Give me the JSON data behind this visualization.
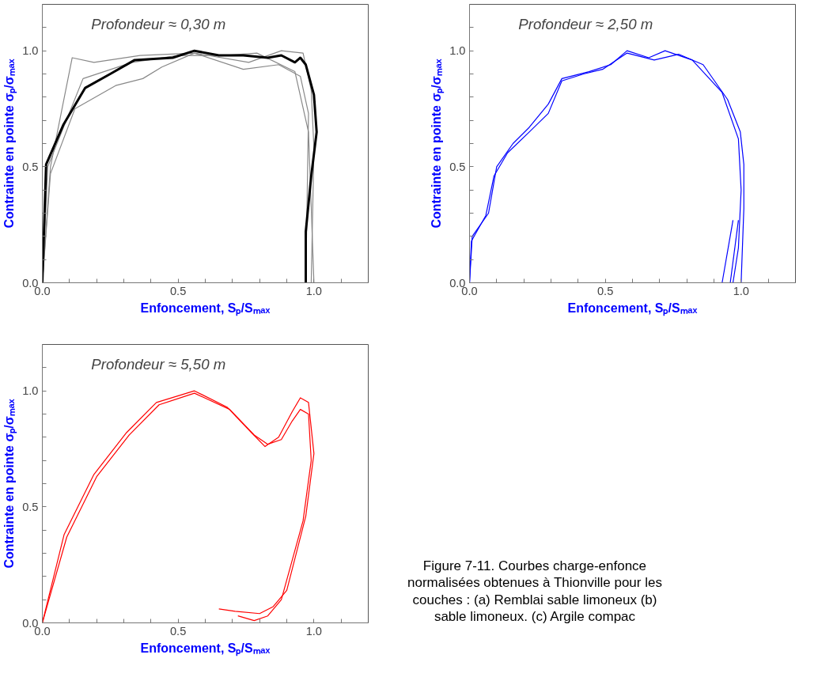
{
  "chart_data": [
    {
      "type": "line",
      "title": "Profondeur ≈ 0,30 m",
      "xlabel": "Enfoncement, Sₚ/Sₘₐₓ",
      "ylabel": "Contrainte en pointe σₚ/σₘₐₓ",
      "xlim": [
        0,
        1.2
      ],
      "ylim": [
        0,
        1.2
      ],
      "xticks": [
        {
          "value": 0,
          "label": "0.0"
        },
        {
          "value": 0.1,
          "label": null
        },
        {
          "value": 0.2,
          "label": null
        },
        {
          "value": 0.3,
          "label": null
        },
        {
          "value": 0.4,
          "label": null
        },
        {
          "value": 0.5,
          "label": "0.5"
        },
        {
          "value": 0.6,
          "label": null
        },
        {
          "value": 0.7,
          "label": null
        },
        {
          "value": 0.8,
          "label": null
        },
        {
          "value": 0.9,
          "label": null
        },
        {
          "value": 1.0,
          "label": "1.0"
        },
        {
          "value": 1.1,
          "label": null
        }
      ],
      "yticks": [
        {
          "value": 0,
          "label": "0.0"
        },
        {
          "value": 0.1,
          "label": null
        },
        {
          "value": 0.2,
          "label": null
        },
        {
          "value": 0.3,
          "label": null
        },
        {
          "value": 0.4,
          "label": null
        },
        {
          "value": 0.5,
          "label": "0.5"
        },
        {
          "value": 0.6,
          "label": null
        },
        {
          "value": 0.7,
          "label": null
        },
        {
          "value": 0.8,
          "label": null
        },
        {
          "value": 0.9,
          "label": null
        },
        {
          "value": 1.0,
          "label": "1.0"
        },
        {
          "value": 1.1,
          "label": null
        }
      ],
      "grid": false,
      "series": [
        {
          "color": "#888888",
          "x": [
            0,
            0.03,
            0.11,
            0.19,
            0.36,
            0.56,
            0.76,
            0.88,
            0.96,
            0.99,
            1.0,
            0.99
          ],
          "values": [
            0,
            0.5,
            0.97,
            0.95,
            0.98,
            0.99,
            0.95,
            1.0,
            0.99,
            0.83,
            0.58,
            0
          ]
        },
        {
          "color": "#888888",
          "x": [
            0,
            0.03,
            0.12,
            0.27,
            0.37,
            0.44,
            0.56,
            0.74,
            0.87,
            0.95,
            0.98,
            0.97
          ],
          "values": [
            0,
            0.47,
            0.75,
            0.85,
            0.88,
            0.93,
            0.99,
            0.92,
            0.94,
            0.89,
            0.73,
            0
          ]
        },
        {
          "color": "#888888",
          "x": [
            0,
            0.02,
            0.15,
            0.33,
            0.5,
            0.67,
            0.79,
            0.93,
            0.98,
            1.0
          ],
          "values": [
            0,
            0.5,
            0.88,
            0.95,
            0.98,
            0.98,
            0.99,
            0.91,
            0.65,
            0
          ]
        },
        {
          "color": "#000000",
          "x": [
            0,
            0.014,
            0.077,
            0.158,
            0.25,
            0.34,
            0.48,
            0.56,
            0.65,
            0.74,
            0.83,
            0.88,
            0.93,
            0.95,
            0.97,
            1.0,
            1.01,
            0.99,
            0.97,
            0.97
          ],
          "values": [
            0,
            0.51,
            0.68,
            0.84,
            0.9,
            0.96,
            0.97,
            1.0,
            0.98,
            0.98,
            0.97,
            0.98,
            0.95,
            0.97,
            0.94,
            0.81,
            0.65,
            0.46,
            0.22,
            0
          ]
        }
      ]
    },
    {
      "type": "line",
      "title": "Profondeur ≈ 2,50 m",
      "xlabel": "Enfoncement, Sₚ/Sₘₐₓ",
      "ylabel": "Contrainte en pointe σₚ/σₘₐₓ",
      "xlim": [
        0,
        1.2
      ],
      "ylim": [
        0,
        1.2
      ],
      "xticks": [
        {
          "value": 0,
          "label": "0.0"
        },
        {
          "value": 0.1,
          "label": null
        },
        {
          "value": 0.2,
          "label": null
        },
        {
          "value": 0.3,
          "label": null
        },
        {
          "value": 0.4,
          "label": null
        },
        {
          "value": 0.5,
          "label": "0.5"
        },
        {
          "value": 0.6,
          "label": null
        },
        {
          "value": 0.7,
          "label": null
        },
        {
          "value": 0.8,
          "label": null
        },
        {
          "value": 0.9,
          "label": null
        },
        {
          "value": 1.0,
          "label": "1.0"
        },
        {
          "value": 1.1,
          "label": null
        }
      ],
      "yticks": [
        {
          "value": 0,
          "label": "0.0"
        },
        {
          "value": 0.1,
          "label": null
        },
        {
          "value": 0.2,
          "label": null
        },
        {
          "value": 0.3,
          "label": null
        },
        {
          "value": 0.4,
          "label": null
        },
        {
          "value": 0.5,
          "label": "0.5"
        },
        {
          "value": 0.6,
          "label": null
        },
        {
          "value": 0.7,
          "label": null
        },
        {
          "value": 0.8,
          "label": null
        },
        {
          "value": 0.9,
          "label": null
        },
        {
          "value": 1.0,
          "label": "1.0"
        },
        {
          "value": 1.1,
          "label": null
        }
      ],
      "grid": false,
      "series": [
        {
          "color": "#0000ff",
          "x": [
            0,
            0.007,
            0.06,
            0.09,
            0.14,
            0.22,
            0.29,
            0.34,
            0.42,
            0.49,
            0.58,
            0.68,
            0.77,
            0.86,
            0.95,
            0.997,
            1.01,
            1.01,
            1.0
          ],
          "values": [
            0,
            0.18,
            0.29,
            0.46,
            0.56,
            0.65,
            0.73,
            0.87,
            0.9,
            0.92,
            0.99,
            0.96,
            0.985,
            0.94,
            0.79,
            0.65,
            0.51,
            0.32,
            0
          ]
        },
        {
          "color": "#0000ff",
          "x": [
            0,
            0.01,
            0.07,
            0.1,
            0.16,
            0.22,
            0.29,
            0.34,
            0.44,
            0.52,
            0.58,
            0.66,
            0.72,
            0.82,
            0.93,
            0.99,
            1.0,
            0.99,
            0.97
          ],
          "values": [
            0,
            0.2,
            0.3,
            0.5,
            0.6,
            0.67,
            0.77,
            0.88,
            0.91,
            0.94,
            1.0,
            0.97,
            1.0,
            0.96,
            0.82,
            0.62,
            0.4,
            0.15,
            0
          ]
        },
        {
          "color": "#0000ff",
          "x": [
            0.96,
            0.99
          ],
          "values": [
            0,
            0.27
          ]
        },
        {
          "color": "#0000ff",
          "x": [
            0.93,
            0.97
          ],
          "values": [
            0,
            0.27
          ]
        }
      ]
    },
    {
      "type": "line",
      "title": "Profondeur ≈ 5,50 m",
      "xlabel": "Enfoncement, Sₚ/Sₘₐₓ",
      "ylabel": "Contrainte en pointe σₚ/σₘₐₓ",
      "xlim": [
        0,
        1.2
      ],
      "ylim": [
        0,
        1.2
      ],
      "xticks": [
        {
          "value": 0,
          "label": "0.0"
        },
        {
          "value": 0.1,
          "label": null
        },
        {
          "value": 0.2,
          "label": null
        },
        {
          "value": 0.3,
          "label": null
        },
        {
          "value": 0.4,
          "label": null
        },
        {
          "value": 0.5,
          "label": "0.5"
        },
        {
          "value": 0.6,
          "label": null
        },
        {
          "value": 0.7,
          "label": null
        },
        {
          "value": 0.8,
          "label": null
        },
        {
          "value": 0.9,
          "label": null
        },
        {
          "value": 1.0,
          "label": "1.0"
        },
        {
          "value": 1.1,
          "label": null
        }
      ],
      "yticks": [
        {
          "value": 0,
          "label": "0.0"
        },
        {
          "value": 0.1,
          "label": null
        },
        {
          "value": 0.2,
          "label": null
        },
        {
          "value": 0.3,
          "label": null
        },
        {
          "value": 0.4,
          "label": null
        },
        {
          "value": 0.5,
          "label": "0.5"
        },
        {
          "value": 0.6,
          "label": null
        },
        {
          "value": 0.7,
          "label": null
        },
        {
          "value": 0.8,
          "label": null
        },
        {
          "value": 0.9,
          "label": null
        },
        {
          "value": 1.0,
          "label": "1.0"
        },
        {
          "value": 1.1,
          "label": null
        }
      ],
      "grid": false,
      "series": [
        {
          "color": "#ff0000",
          "x": [
            0,
            0.08,
            0.19,
            0.31,
            0.42,
            0.56,
            0.68,
            0.77,
            0.82,
            0.87,
            0.92,
            0.95,
            0.98,
            1.0,
            0.97,
            0.9,
            0.85,
            0.8,
            0.71,
            0.65
          ],
          "values": [
            0,
            0.38,
            0.64,
            0.82,
            0.95,
            1.0,
            0.93,
            0.82,
            0.76,
            0.8,
            0.91,
            0.97,
            0.95,
            0.73,
            0.46,
            0.14,
            0.07,
            0.04,
            0.05,
            0.06
          ]
        },
        {
          "color": "#ff0000",
          "x": [
            0,
            0.09,
            0.2,
            0.32,
            0.43,
            0.56,
            0.69,
            0.78,
            0.83,
            0.88,
            0.92,
            0.95,
            0.98,
            0.99,
            0.96,
            0.88,
            0.83,
            0.78,
            0.72
          ],
          "values": [
            0,
            0.37,
            0.63,
            0.81,
            0.94,
            0.99,
            0.92,
            0.81,
            0.77,
            0.79,
            0.87,
            0.92,
            0.9,
            0.7,
            0.44,
            0.1,
            0.03,
            0.01,
            0.03
          ]
        }
      ]
    },
    {
      "type": "other",
      "annotations": [
        "Figure 7-11. Courbes charge-enfonce",
        "normalisées obtenues à Thionville pour les",
        "couches : (a) Remblai sable limoneux (b)",
        "sable limoneux. (c) Argile compac"
      ]
    }
  ]
}
